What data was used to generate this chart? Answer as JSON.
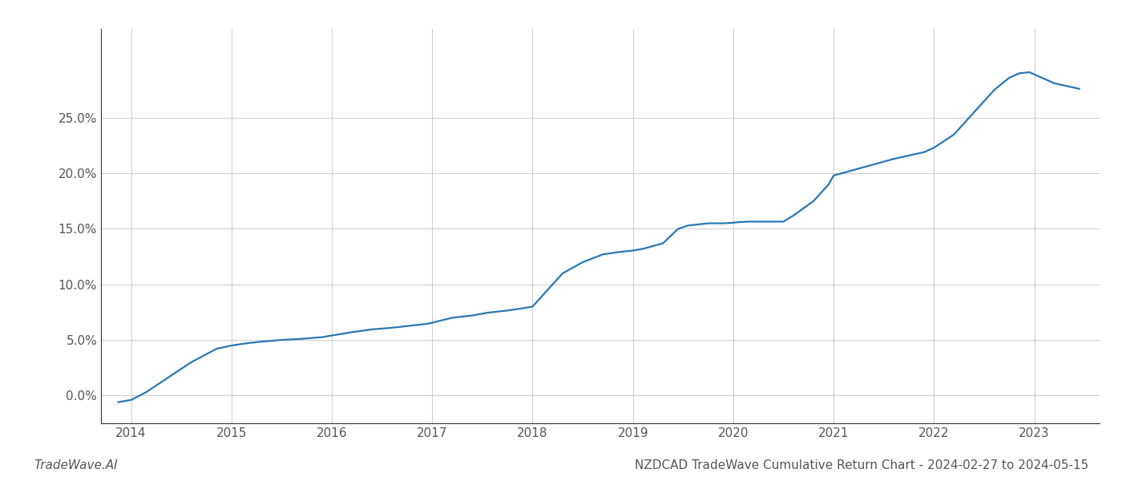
{
  "title": "NZDCAD TradeWave Cumulative Return Chart - 2024-02-27 to 2024-05-15",
  "watermark": "TradeWave.AI",
  "line_color": "#2878b5",
  "background_color": "#ffffff",
  "grid_color": "#cccccc",
  "x_years": [
    2014,
    2015,
    2016,
    2017,
    2018,
    2019,
    2020,
    2021,
    2022,
    2023
  ],
  "data_x": [
    2013.87,
    2014.0,
    2014.15,
    2014.35,
    2014.6,
    2014.85,
    2015.0,
    2015.15,
    2015.3,
    2015.5,
    2015.7,
    2015.9,
    2016.0,
    2016.2,
    2016.4,
    2016.6,
    2016.8,
    2016.95,
    2017.0,
    2017.2,
    2017.4,
    2017.55,
    2017.75,
    2017.9,
    2018.0,
    2018.15,
    2018.3,
    2018.5,
    2018.7,
    2018.85,
    2018.95,
    2019.0,
    2019.1,
    2019.3,
    2019.45,
    2019.55,
    2019.65,
    2019.75,
    2019.9,
    2020.0,
    2020.05,
    2020.15,
    2020.3,
    2020.5,
    2020.6,
    2020.8,
    2020.95,
    2021.0,
    2021.2,
    2021.4,
    2021.6,
    2021.75,
    2021.9,
    2022.0,
    2022.2,
    2022.4,
    2022.6,
    2022.75,
    2022.85,
    2022.95,
    2023.0,
    2023.2,
    2023.45
  ],
  "data_y": [
    -0.6,
    -0.4,
    0.3,
    1.5,
    3.0,
    4.2,
    4.5,
    4.7,
    4.85,
    5.0,
    5.1,
    5.25,
    5.4,
    5.7,
    5.95,
    6.1,
    6.3,
    6.45,
    6.55,
    7.0,
    7.2,
    7.45,
    7.65,
    7.85,
    8.0,
    9.5,
    11.0,
    12.0,
    12.7,
    12.9,
    13.0,
    13.05,
    13.2,
    13.7,
    15.0,
    15.3,
    15.4,
    15.5,
    15.5,
    15.55,
    15.6,
    15.65,
    15.65,
    15.65,
    16.2,
    17.5,
    19.0,
    19.8,
    20.3,
    20.8,
    21.3,
    21.6,
    21.9,
    22.3,
    23.5,
    25.5,
    27.5,
    28.6,
    29.0,
    29.1,
    28.9,
    28.1,
    27.6
  ],
  "ylim": [
    -2.5,
    33
  ],
  "yticks": [
    0.0,
    5.0,
    10.0,
    15.0,
    20.0,
    25.0
  ],
  "xlim": [
    2013.7,
    2023.65
  ],
  "title_fontsize": 11,
  "watermark_fontsize": 11,
  "tick_fontsize": 11,
  "line_width": 1.6
}
